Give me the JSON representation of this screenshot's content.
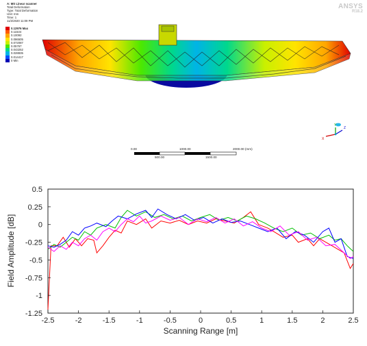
{
  "fea": {
    "header": {
      "title": "A: MS Linear scanner",
      "lines": [
        "Total Deformation",
        "Type: Total Deformation",
        "Unit: mm",
        "Time: 1",
        "11/2/2020 11:09 PM"
      ]
    },
    "legend": [
      {
        "value": "0.12976 Max",
        "color": "#e00000",
        "max": true
      },
      {
        "value": "0.11534",
        "color": "#ff5a00"
      },
      {
        "value": "0.10092",
        "color": "#ffa600"
      },
      {
        "value": "0.086505",
        "color": "#ffe400"
      },
      {
        "value": "0.072087",
        "color": "#c8f000"
      },
      {
        "value": "0.05767",
        "color": "#4ce800"
      },
      {
        "value": "0.043252",
        "color": "#00d88c"
      },
      {
        "value": "0.028835",
        "color": "#00b4e6"
      },
      {
        "value": "0.014417",
        "color": "#0050ff"
      },
      {
        "value": "0 Min",
        "color": "#0000b4"
      }
    ],
    "logo": {
      "brand": "ANSYS",
      "version": "R18.2"
    },
    "scale_bar": {
      "top_labels": [
        "0.00",
        "1000.00",
        "2000.00 (mm)"
      ],
      "bottom_labels": [
        "500.00",
        "1500.00"
      ]
    },
    "triad": {
      "x": "X",
      "y": "Y",
      "z": "Z"
    },
    "colors": {
      "beam_gradient": [
        "#e00000",
        "#ffa600",
        "#ffe400",
        "#4ce800",
        "#00d88c",
        "#00b4e6",
        "#0050ff",
        "#0000b4"
      ]
    }
  },
  "chart_data": {
    "type": "line",
    "xlabel": "Scanning Range [m]",
    "ylabel": "Field Amplitude [dB]",
    "xlim": [
      -2.5,
      2.5
    ],
    "ylim": [
      -1.25,
      0.5
    ],
    "xticks": [
      "-2.5",
      "-2",
      "-1.5",
      "-1",
      "-0.5",
      "0",
      "0.5",
      "1",
      "1.5",
      "2",
      "2.5"
    ],
    "yticks": [
      "0.5",
      "0.25",
      "0",
      "-0.25",
      "-0.5",
      "-0.75",
      "-1",
      "-1.25"
    ],
    "grid": false,
    "series": [
      {
        "color": "#ff0000",
        "points": [
          [
            -2.5,
            -1.2
          ],
          [
            -2.45,
            -0.3
          ],
          [
            -2.35,
            -0.3
          ],
          [
            -2.25,
            -0.18
          ],
          [
            -2.15,
            -0.32
          ],
          [
            -2.05,
            -0.2
          ],
          [
            -1.95,
            -0.3
          ],
          [
            -1.85,
            -0.2
          ],
          [
            -1.75,
            -0.22
          ],
          [
            -1.7,
            -0.4
          ],
          [
            -1.6,
            -0.3
          ],
          [
            -1.5,
            -0.18
          ],
          [
            -1.4,
            -0.08
          ],
          [
            -1.3,
            -0.12
          ],
          [
            -1.2,
            0.05
          ],
          [
            -1.05,
            0.0
          ],
          [
            -0.9,
            0.08
          ],
          [
            -0.8,
            -0.05
          ],
          [
            -0.65,
            0.05
          ],
          [
            -0.5,
            0.02
          ],
          [
            -0.35,
            0.06
          ],
          [
            -0.2,
            0.0
          ],
          [
            -0.05,
            0.05
          ],
          [
            0.1,
            0.02
          ],
          [
            0.25,
            0.08
          ],
          [
            0.4,
            0.05
          ],
          [
            0.55,
            0.02
          ],
          [
            0.7,
            0.1
          ],
          [
            0.82,
            0.18
          ],
          [
            0.95,
            0.0
          ],
          [
            1.1,
            -0.05
          ],
          [
            1.2,
            -0.1
          ],
          [
            1.35,
            -0.18
          ],
          [
            1.5,
            -0.15
          ],
          [
            1.6,
            -0.25
          ],
          [
            1.75,
            -0.2
          ],
          [
            1.85,
            -0.3
          ],
          [
            1.95,
            -0.2
          ],
          [
            2.05,
            -0.25
          ],
          [
            2.15,
            -0.3
          ],
          [
            2.25,
            -0.35
          ],
          [
            2.35,
            -0.4
          ],
          [
            2.45,
            -0.62
          ],
          [
            2.5,
            -0.55
          ]
        ]
      },
      {
        "color": "#00c000",
        "points": [
          [
            -2.5,
            -0.35
          ],
          [
            -2.4,
            -0.28
          ],
          [
            -2.3,
            -0.32
          ],
          [
            -2.2,
            -0.25
          ],
          [
            -2.1,
            -0.18
          ],
          [
            -2.0,
            -0.22
          ],
          [
            -1.9,
            -0.1
          ],
          [
            -1.8,
            -0.15
          ],
          [
            -1.7,
            -0.05
          ],
          [
            -1.55,
            0.0
          ],
          [
            -1.4,
            -0.05
          ],
          [
            -1.3,
            0.1
          ],
          [
            -1.2,
            0.2
          ],
          [
            -1.05,
            0.12
          ],
          [
            -0.9,
            0.18
          ],
          [
            -0.75,
            0.1
          ],
          [
            -0.6,
            0.14
          ],
          [
            -0.45,
            0.08
          ],
          [
            -0.3,
            0.12
          ],
          [
            -0.15,
            0.05
          ],
          [
            0.0,
            0.1
          ],
          [
            0.15,
            0.14
          ],
          [
            0.3,
            0.06
          ],
          [
            0.45,
            0.1
          ],
          [
            0.6,
            0.05
          ],
          [
            0.75,
            0.12
          ],
          [
            0.9,
            0.08
          ],
          [
            1.05,
            0.02
          ],
          [
            1.2,
            -0.05
          ],
          [
            1.35,
            -0.1
          ],
          [
            1.5,
            -0.05
          ],
          [
            1.65,
            -0.15
          ],
          [
            1.8,
            -0.12
          ],
          [
            1.95,
            -0.2
          ],
          [
            2.1,
            -0.15
          ],
          [
            2.2,
            -0.22
          ],
          [
            2.3,
            -0.2
          ],
          [
            2.4,
            -0.3
          ],
          [
            2.5,
            -0.38
          ]
        ]
      },
      {
        "color": "#0000ff",
        "points": [
          [
            -2.5,
            -0.3
          ],
          [
            -2.4,
            -0.32
          ],
          [
            -2.3,
            -0.28
          ],
          [
            -2.2,
            -0.22
          ],
          [
            -2.1,
            -0.1
          ],
          [
            -2.0,
            -0.15
          ],
          [
            -1.9,
            -0.05
          ],
          [
            -1.8,
            -0.02
          ],
          [
            -1.7,
            0.02
          ],
          [
            -1.55,
            -0.03
          ],
          [
            -1.45,
            0.05
          ],
          [
            -1.35,
            0.12
          ],
          [
            -1.2,
            0.08
          ],
          [
            -1.05,
            0.15
          ],
          [
            -0.9,
            0.2
          ],
          [
            -0.8,
            0.1
          ],
          [
            -0.7,
            0.22
          ],
          [
            -0.55,
            0.14
          ],
          [
            -0.4,
            0.08
          ],
          [
            -0.25,
            0.14
          ],
          [
            -0.1,
            0.06
          ],
          [
            0.05,
            0.1
          ],
          [
            0.2,
            0.02
          ],
          [
            0.35,
            0.08
          ],
          [
            0.5,
            0.03
          ],
          [
            0.65,
            0.05
          ],
          [
            0.8,
            0.0
          ],
          [
            0.95,
            -0.05
          ],
          [
            1.1,
            -0.1
          ],
          [
            1.25,
            -0.05
          ],
          [
            1.4,
            -0.2
          ],
          [
            1.55,
            -0.1
          ],
          [
            1.7,
            -0.15
          ],
          [
            1.85,
            -0.25
          ],
          [
            2.0,
            -0.1
          ],
          [
            2.1,
            -0.05
          ],
          [
            2.2,
            -0.25
          ],
          [
            2.3,
            -0.2
          ],
          [
            2.4,
            -0.45
          ],
          [
            2.5,
            -0.48
          ]
        ]
      },
      {
        "color": "#ff00ff",
        "points": [
          [
            -2.5,
            -0.32
          ],
          [
            -2.4,
            -0.38
          ],
          [
            -2.3,
            -0.3
          ],
          [
            -2.2,
            -0.35
          ],
          [
            -2.1,
            -0.25
          ],
          [
            -2.0,
            -0.3
          ],
          [
            -1.9,
            -0.2
          ],
          [
            -1.8,
            -0.15
          ],
          [
            -1.7,
            -0.22
          ],
          [
            -1.6,
            -0.1
          ],
          [
            -1.5,
            -0.05
          ],
          [
            -1.4,
            -0.1
          ],
          [
            -1.3,
            0.0
          ],
          [
            -1.2,
            0.08
          ],
          [
            -1.1,
            0.04
          ],
          [
            -1.0,
            0.12
          ],
          [
            -0.9,
            0.02
          ],
          [
            -0.8,
            0.05
          ],
          [
            -0.65,
            0.12
          ],
          [
            -0.5,
            0.06
          ],
          [
            -0.35,
            0.1
          ],
          [
            -0.2,
            0.0
          ],
          [
            -0.05,
            0.08
          ],
          [
            0.1,
            0.04
          ],
          [
            0.25,
            0.1
          ],
          [
            0.4,
            0.02
          ],
          [
            0.55,
            0.08
          ],
          [
            0.7,
            -0.02
          ],
          [
            0.85,
            0.04
          ],
          [
            1.0,
            -0.05
          ],
          [
            1.15,
            -0.1
          ],
          [
            1.3,
            -0.02
          ],
          [
            1.45,
            -0.15
          ],
          [
            1.6,
            -0.1
          ],
          [
            1.75,
            -0.22
          ],
          [
            1.9,
            -0.18
          ],
          [
            2.05,
            -0.3
          ],
          [
            2.2,
            -0.28
          ],
          [
            2.35,
            -0.4
          ],
          [
            2.45,
            -0.48
          ],
          [
            2.5,
            -0.45
          ]
        ]
      }
    ]
  }
}
